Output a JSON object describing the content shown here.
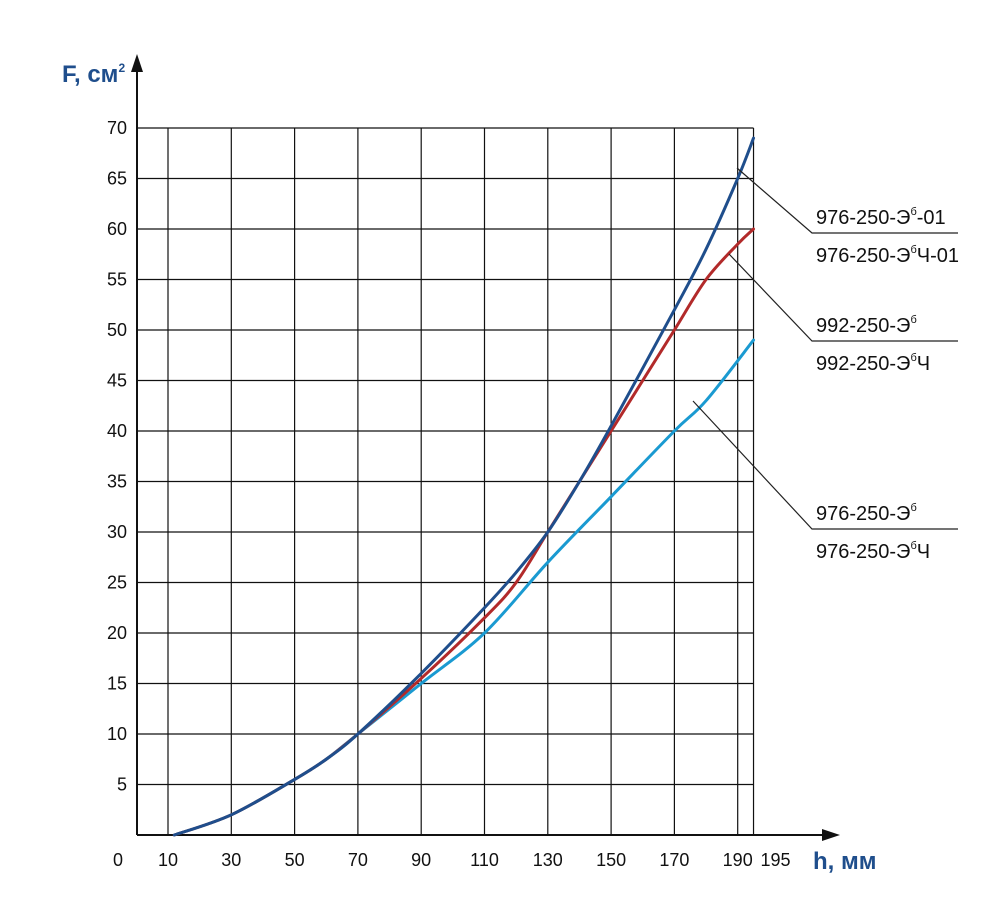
{
  "chart_data": {
    "type": "line",
    "xlabel": "h, мм",
    "ylabel": "F, см",
    "ylabel_sup": "2",
    "xlim": [
      10,
      195
    ],
    "ylim": [
      0,
      70
    ],
    "x_ticks": [
      "0",
      "10",
      "30",
      "50",
      "70",
      "90",
      "110",
      "130",
      "150",
      "170",
      "190",
      "195"
    ],
    "y_ticks": [
      5,
      10,
      15,
      20,
      25,
      30,
      35,
      40,
      45,
      50,
      55,
      60,
      65,
      70
    ],
    "grid": true,
    "colors": {
      "dark_blue": "#1f4e8c",
      "red": "#b22a2a",
      "light_blue": "#1a9ad1",
      "axis": "#111111"
    },
    "series": [
      {
        "color": "dark_blue",
        "legend_lines": [
          {
            "text": "976-250-Э",
            "sup": "б",
            "suffix": "-01"
          },
          {
            "text": "976-250-Э",
            "sup": "б",
            "suffix": "Ч-01"
          }
        ],
        "points": [
          [
            12,
            0
          ],
          [
            30,
            2
          ],
          [
            50,
            5.5
          ],
          [
            60,
            7.5
          ],
          [
            70,
            10
          ],
          [
            90,
            16
          ],
          [
            110,
            22.5
          ],
          [
            120,
            26
          ],
          [
            130,
            30
          ],
          [
            140,
            35
          ],
          [
            150,
            40.5
          ],
          [
            170,
            52
          ],
          [
            180,
            58
          ],
          [
            190,
            65
          ],
          [
            195,
            69
          ]
        ]
      },
      {
        "color": "red",
        "legend_lines": [
          {
            "text": "992-250-Э",
            "sup": "б",
            "suffix": ""
          },
          {
            "text": "992-250-Э",
            "sup": "б",
            "suffix": "Ч"
          }
        ],
        "points": [
          [
            12,
            0
          ],
          [
            30,
            2
          ],
          [
            50,
            5.5
          ],
          [
            60,
            7.5
          ],
          [
            70,
            10
          ],
          [
            90,
            15.5
          ],
          [
            110,
            21.5
          ],
          [
            120,
            25
          ],
          [
            130,
            30
          ],
          [
            140,
            35
          ],
          [
            150,
            40
          ],
          [
            160,
            45
          ],
          [
            170,
            50
          ],
          [
            180,
            55
          ],
          [
            190,
            58.5
          ],
          [
            195,
            60
          ]
        ]
      },
      {
        "color": "light_blue",
        "legend_lines": [
          {
            "text": "976-250-Э",
            "sup": "б",
            "suffix": ""
          },
          {
            "text": "976-250-Э",
            "sup": "б",
            "suffix": "Ч"
          }
        ],
        "points": [
          [
            12,
            0
          ],
          [
            30,
            2
          ],
          [
            50,
            5.5
          ],
          [
            60,
            7.5
          ],
          [
            70,
            10
          ],
          [
            90,
            15
          ],
          [
            110,
            20
          ],
          [
            130,
            27
          ],
          [
            150,
            33.5
          ],
          [
            170,
            40
          ],
          [
            180,
            43
          ],
          [
            195,
            49
          ]
        ]
      }
    ]
  }
}
